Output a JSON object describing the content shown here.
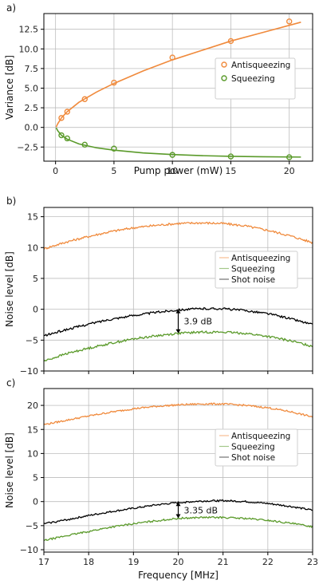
{
  "chart_data": [
    {
      "panel": "a)",
      "type": "scatter",
      "xlabel": "Pump power (mW)",
      "ylabel": "Variance [dB]",
      "xlim": [
        -1,
        22
      ],
      "ylim": [
        -4.3,
        14.5
      ],
      "xticks": [
        0,
        5,
        10,
        15,
        20
      ],
      "yticks": [
        -2.5,
        0.0,
        2.5,
        5.0,
        7.5,
        10.0,
        12.5
      ],
      "grid": true,
      "legend_position": "center-right",
      "colors": {
        "antisqueezing": "#f08a3c",
        "squeezing": "#5a9a2a"
      },
      "series": [
        {
          "name": "Antisqueezing",
          "kind": "points",
          "x": [
            0.5,
            1.0,
            2.5,
            5.0,
            10.0,
            15.0,
            20.0
          ],
          "y": [
            1.2,
            2.0,
            3.6,
            5.7,
            8.9,
            11.0,
            13.5
          ]
        },
        {
          "name": "Squeezing",
          "kind": "points",
          "x": [
            0.5,
            1.0,
            2.5,
            5.0,
            10.0,
            15.0,
            20.0
          ],
          "y": [
            -1.0,
            -1.4,
            -2.2,
            -2.7,
            -3.5,
            -3.7,
            -3.8
          ]
        }
      ],
      "fits": [
        {
          "name": "Antisqueezing",
          "x": [
            0.05,
            0.2,
            0.5,
            1.0,
            2.0,
            3.5,
            5.0,
            7.5,
            10.0,
            12.5,
            15.0,
            17.5,
            21.0
          ],
          "y": [
            0.05,
            0.5,
            1.2,
            2.0,
            3.2,
            4.5,
            5.6,
            7.2,
            8.6,
            9.8,
            11.0,
            12.0,
            13.4
          ]
        },
        {
          "name": "Squeezing",
          "x": [
            0.05,
            0.2,
            0.5,
            1.0,
            2.0,
            3.5,
            5.0,
            7.5,
            10.0,
            12.5,
            15.0,
            17.5,
            21.0
          ],
          "y": [
            -0.05,
            -0.45,
            -1.0,
            -1.5,
            -2.1,
            -2.6,
            -2.9,
            -3.25,
            -3.45,
            -3.6,
            -3.68,
            -3.73,
            -3.78
          ]
        }
      ]
    },
    {
      "panel": "b)",
      "type": "line",
      "xlabel": "",
      "ylabel": "Noise level [dB]",
      "xlim": [
        17,
        23
      ],
      "ylim": [
        -10,
        16.5
      ],
      "xticks": [
        17,
        18,
        19,
        20,
        21,
        22,
        23
      ],
      "yticks": [
        -10,
        -5,
        0,
        5,
        10,
        15
      ],
      "grid": true,
      "legend_position": "center-right",
      "annotation": {
        "text": "3.9 dB",
        "x": 20.0,
        "y_top": 0.0,
        "y_bottom": -3.9
      },
      "series": [
        {
          "name": "Antisqueezing",
          "color": "#f08a3c",
          "x": [
            17,
            17.5,
            18,
            18.5,
            19,
            19.5,
            20,
            20.5,
            21,
            21.5,
            22,
            22.5,
            23
          ],
          "y": [
            9.8,
            10.9,
            11.8,
            12.6,
            13.2,
            13.6,
            13.9,
            14.0,
            13.9,
            13.5,
            12.8,
            11.9,
            10.8
          ]
        },
        {
          "name": "Squeezing",
          "color": "#5a9a2a",
          "x": [
            17,
            17.5,
            18,
            18.5,
            19,
            19.5,
            20,
            20.5,
            21,
            21.5,
            22,
            22.5,
            23
          ],
          "y": [
            -8.4,
            -7.2,
            -6.3,
            -5.5,
            -4.8,
            -4.3,
            -3.9,
            -3.7,
            -3.7,
            -3.9,
            -4.4,
            -5.1,
            -6.0
          ]
        },
        {
          "name": "Shot noise",
          "color": "#000000",
          "x": [
            17,
            17.5,
            18,
            18.5,
            19,
            19.5,
            20,
            20.5,
            21,
            21.5,
            22,
            22.5,
            23
          ],
          "y": [
            -4.3,
            -3.3,
            -2.4,
            -1.6,
            -1.0,
            -0.5,
            -0.1,
            0.1,
            0.1,
            -0.2,
            -0.7,
            -1.5,
            -2.5
          ]
        }
      ]
    },
    {
      "panel": "c)",
      "type": "line",
      "xlabel": "Frequency [MHz]",
      "ylabel": "Noise level [dB]",
      "xlim": [
        17,
        23
      ],
      "ylim": [
        -10.5,
        23.5
      ],
      "xticks": [
        17,
        18,
        19,
        20,
        21,
        22,
        23
      ],
      "yticks": [
        -10,
        -5,
        0,
        5,
        10,
        15,
        20
      ],
      "grid": true,
      "legend_position": "center-right",
      "annotation": {
        "text": "3.35 dB",
        "x": 20.0,
        "y_top": -0.1,
        "y_bottom": -3.45
      },
      "series": [
        {
          "name": "Antisqueezing",
          "color": "#f08a3c",
          "x": [
            17,
            17.5,
            18,
            18.5,
            19,
            19.5,
            20,
            20.5,
            21,
            21.5,
            22,
            22.5,
            23
          ],
          "y": [
            16.0,
            16.9,
            17.8,
            18.6,
            19.3,
            19.8,
            20.1,
            20.3,
            20.3,
            20.0,
            19.5,
            18.7,
            17.6
          ]
        },
        {
          "name": "Squeezing",
          "color": "#5a9a2a",
          "x": [
            17,
            17.5,
            18,
            18.5,
            19,
            19.5,
            20,
            20.5,
            21,
            21.5,
            22,
            22.5,
            23
          ],
          "y": [
            -8.1,
            -7.1,
            -6.2,
            -5.3,
            -4.6,
            -4.0,
            -3.5,
            -3.3,
            -3.3,
            -3.5,
            -3.9,
            -4.5,
            -5.2
          ]
        },
        {
          "name": "Shot noise",
          "color": "#000000",
          "x": [
            17,
            17.5,
            18,
            18.5,
            19,
            19.5,
            20,
            20.5,
            21,
            21.5,
            22,
            22.5,
            23
          ],
          "y": [
            -4.6,
            -3.8,
            -2.9,
            -2.1,
            -1.4,
            -0.7,
            -0.2,
            0.1,
            0.2,
            0.0,
            -0.4,
            -1.0,
            -1.8
          ]
        }
      ]
    }
  ]
}
